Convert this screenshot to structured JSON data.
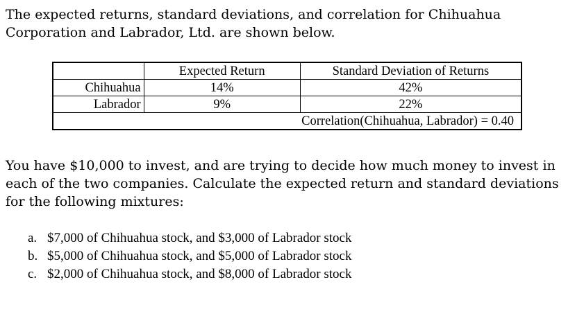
{
  "intro": {
    "line1": "The expected returns, standard deviations, and correlation for Chihuahua",
    "line2": "Corporation and Labrador, Ltd. are shown below."
  },
  "table": {
    "headers": [
      "",
      "Expected Return",
      "Standard Deviation of Returns"
    ],
    "rows": [
      {
        "name": "Chihuahua",
        "expected_return": "14%",
        "std_dev": "42%"
      },
      {
        "name": "Labrador",
        "expected_return": "9%",
        "std_dev": "22%"
      }
    ],
    "correlation": "Correlation(Chihuahua, Labrador) = 0.40"
  },
  "task": {
    "line1": "You have $10,000 to invest, and are trying to decide how much money to invest in",
    "line2": "each of the two companies.  Calculate the expected return and standard deviations",
    "line3": "for the following mixtures:"
  },
  "mixtures": [
    {
      "marker": "a.",
      "text": "$7,000 of Chihuahua stock, and $3,000 of Labrador stock"
    },
    {
      "marker": "b.",
      "text": "$5,000 of Chihuahua stock, and $5,000 of Labrador stock"
    },
    {
      "marker": "c.",
      "text": "$2,000 of Chihuahua stock, and $8,000 of Labrador stock"
    }
  ]
}
